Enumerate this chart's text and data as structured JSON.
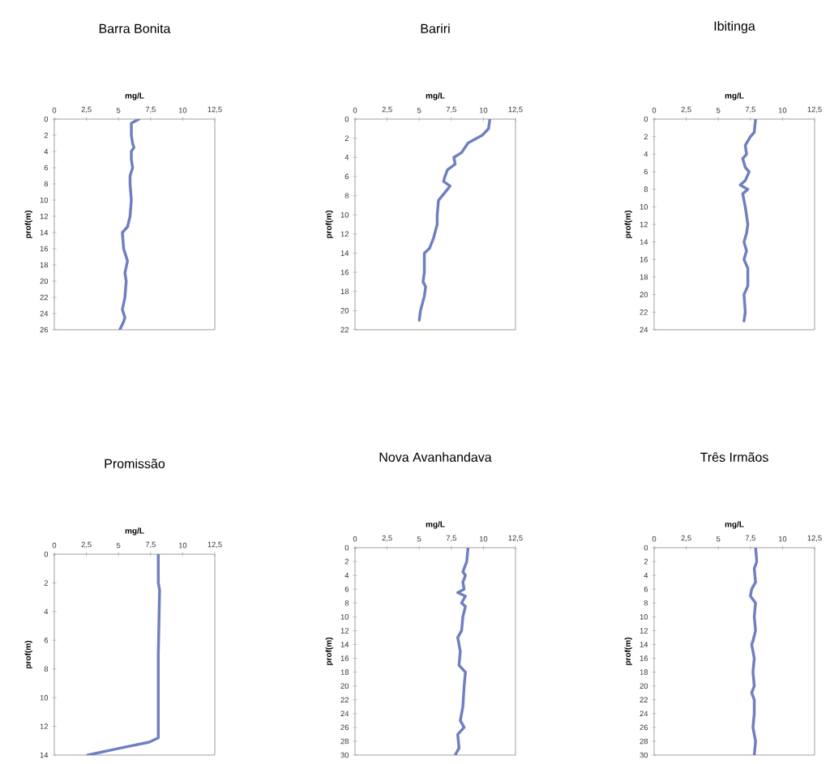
{
  "chart_data": [
    {
      "type": "line",
      "title": "Barra Bonita",
      "xlabel": "mg/L",
      "ylabel": "prof(m)",
      "xlim": [
        0,
        12.5
      ],
      "xticks": [
        0,
        {
          "value": 2.5,
          "label": "2,5"
        },
        5,
        {
          "value": 7.5,
          "label": "7,5"
        },
        10,
        {
          "value": 12.5,
          "label": "12,5"
        }
      ],
      "ylim": [
        26,
        0
      ],
      "yticks": [
        0,
        2,
        4,
        6,
        8,
        10,
        12,
        14,
        16,
        18,
        20,
        22,
        24,
        26
      ],
      "series": [
        {
          "color": "#6f7fc0",
          "x": [
            6.6,
            6.0,
            6.0,
            6.1,
            6.2,
            6.0,
            6.0,
            6.1,
            5.9,
            5.9,
            6.0,
            5.9,
            5.7,
            5.3,
            5.4,
            5.7,
            5.5,
            5.6,
            5.5,
            5.3,
            5.5,
            5.4,
            5.1
          ],
          "values": [
            0,
            0.5,
            2,
            3,
            3.5,
            4,
            5,
            6,
            7,
            8,
            10,
            12,
            13.3,
            14,
            16,
            17.5,
            19,
            20,
            22,
            23.5,
            24.5,
            25,
            26
          ]
        }
      ]
    },
    {
      "type": "line",
      "title": "Bariri",
      "xlabel": "mg/L",
      "ylabel": "prof(m)",
      "xlim": [
        0,
        12.5
      ],
      "xticks": [
        0,
        {
          "value": 2.5,
          "label": "2,5"
        },
        5,
        {
          "value": 7.5,
          "label": "7,5"
        },
        10,
        {
          "value": 12.5,
          "label": "12,5"
        }
      ],
      "ylim": [
        22,
        0
      ],
      "yticks": [
        0,
        2,
        4,
        6,
        8,
        10,
        12,
        14,
        16,
        18,
        20,
        22
      ],
      "series": [
        {
          "color": "#6f7fc0",
          "x": [
            10.5,
            10.4,
            9.9,
            8.8,
            8.3,
            7.7,
            7.8,
            7.2,
            7.0,
            6.9,
            7.4,
            7.1,
            6.5,
            6.4,
            6.4,
            6.1,
            5.8,
            5.4,
            5.4,
            5.3,
            5.5,
            5.4,
            5.1,
            5.0
          ],
          "values": [
            0,
            1,
            1.7,
            2.5,
            3.5,
            4,
            4.7,
            5.3,
            6,
            6.5,
            7,
            7.5,
            8.5,
            10,
            11,
            12.5,
            13.5,
            14,
            16,
            17,
            17.5,
            18.5,
            20,
            21
          ]
        }
      ]
    },
    {
      "type": "line",
      "title": "Ibitinga",
      "xlabel": "mg/L",
      "ylabel": "prof(m)",
      "xlim": [
        0,
        12.5
      ],
      "xticks": [
        0,
        {
          "value": 2.5,
          "label": "2,5"
        },
        5,
        {
          "value": 7.5,
          "label": "7,5"
        },
        10,
        {
          "value": 12.5,
          "label": "12,5"
        }
      ],
      "ylim": [
        24,
        0
      ],
      "yticks": [
        0,
        2,
        4,
        6,
        8,
        10,
        12,
        14,
        16,
        18,
        20,
        22,
        24
      ],
      "series": [
        {
          "color": "#6f7fc0",
          "x": [
            7.9,
            7.8,
            7.5,
            7.1,
            7.2,
            6.9,
            7.1,
            7.4,
            7.1,
            6.7,
            7.3,
            6.9,
            7.1,
            7.3,
            7.2,
            7.0,
            7.2,
            7.0,
            7.3,
            7.3,
            7.0,
            7.1,
            7.0
          ],
          "values": [
            0,
            1.5,
            2,
            3,
            4,
            4.5,
            5.5,
            6,
            7,
            7.5,
            8,
            8.5,
            10,
            12,
            13,
            14,
            15,
            16,
            17,
            19,
            20,
            22,
            23
          ]
        }
      ]
    },
    {
      "type": "line",
      "title": "Promissão",
      "xlabel": "mg/L",
      "ylabel": "prof(m)",
      "xlim": [
        0,
        12.5
      ],
      "xticks": [
        0,
        {
          "value": 2.5,
          "label": "2,5"
        },
        5,
        {
          "value": 7.5,
          "label": "7,5"
        },
        10,
        {
          "value": 12.5,
          "label": "12,5"
        }
      ],
      "ylim": [
        14,
        0
      ],
      "yticks": [
        0,
        2,
        4,
        6,
        8,
        10,
        12,
        14
      ],
      "series": [
        {
          "color": "#6f7fc0",
          "x": [
            8.1,
            8.1,
            8.2,
            8.1,
            8.1,
            7.4,
            5.2,
            2.6
          ],
          "values": [
            0,
            2,
            2.5,
            7,
            12.8,
            13.1,
            13.5,
            14
          ]
        }
      ]
    },
    {
      "type": "line",
      "title": "Nova Avanhandava",
      "xlabel": "mg/L",
      "ylabel": "prof(m)",
      "xlim": [
        0,
        12.5
      ],
      "xticks": [
        0,
        {
          "value": 2.5,
          "label": "2,5"
        },
        5,
        {
          "value": 7.5,
          "label": "7,5"
        },
        10,
        {
          "value": 12.5,
          "label": "12,5"
        }
      ],
      "ylim": [
        30,
        0
      ],
      "yticks": [
        0,
        2,
        4,
        6,
        8,
        10,
        12,
        14,
        16,
        18,
        20,
        22,
        24,
        26,
        28,
        30
      ],
      "series": [
        {
          "color": "#6f7fc0",
          "x": [
            8.8,
            8.7,
            8.4,
            8.6,
            8.4,
            8.5,
            8.0,
            8.6,
            8.3,
            8.6,
            8.4,
            8.3,
            8.0,
            8.2,
            8.1,
            8.6,
            8.5,
            8.4,
            8.2,
            8.5,
            8.0,
            8.1,
            7.8
          ],
          "values": [
            0,
            2,
            3.5,
            4,
            5,
            6,
            6.5,
            7,
            8,
            8.5,
            10,
            12,
            13,
            15,
            17,
            18,
            20,
            23,
            25,
            26,
            27,
            29,
            30
          ]
        }
      ]
    },
    {
      "type": "line",
      "title": "Três Irmãos",
      "xlabel": "mg/L",
      "ylabel": "prof(m)",
      "xlim": [
        0,
        12.5
      ],
      "xticks": [
        0,
        {
          "value": 2.5,
          "label": "2,5"
        },
        5,
        {
          "value": 7.5,
          "label": "7,5"
        },
        10,
        {
          "value": 12.5,
          "label": "12,5"
        }
      ],
      "ylim": [
        30,
        0
      ],
      "yticks": [
        0,
        2,
        4,
        6,
        8,
        10,
        12,
        14,
        16,
        18,
        20,
        22,
        24,
        26,
        28,
        30
      ],
      "series": [
        {
          "color": "#6f7fc0",
          "x": [
            7.9,
            8.0,
            7.8,
            7.9,
            7.6,
            7.5,
            7.9,
            7.8,
            7.9,
            7.7,
            7.6,
            7.8,
            7.7,
            7.8,
            7.6,
            7.8,
            7.8,
            7.7,
            7.9,
            7.8
          ],
          "values": [
            0,
            2,
            3,
            5,
            6,
            7,
            8,
            10,
            12,
            13.5,
            14,
            16,
            18,
            20,
            21,
            22,
            24,
            26,
            28,
            30
          ]
        }
      ]
    }
  ]
}
